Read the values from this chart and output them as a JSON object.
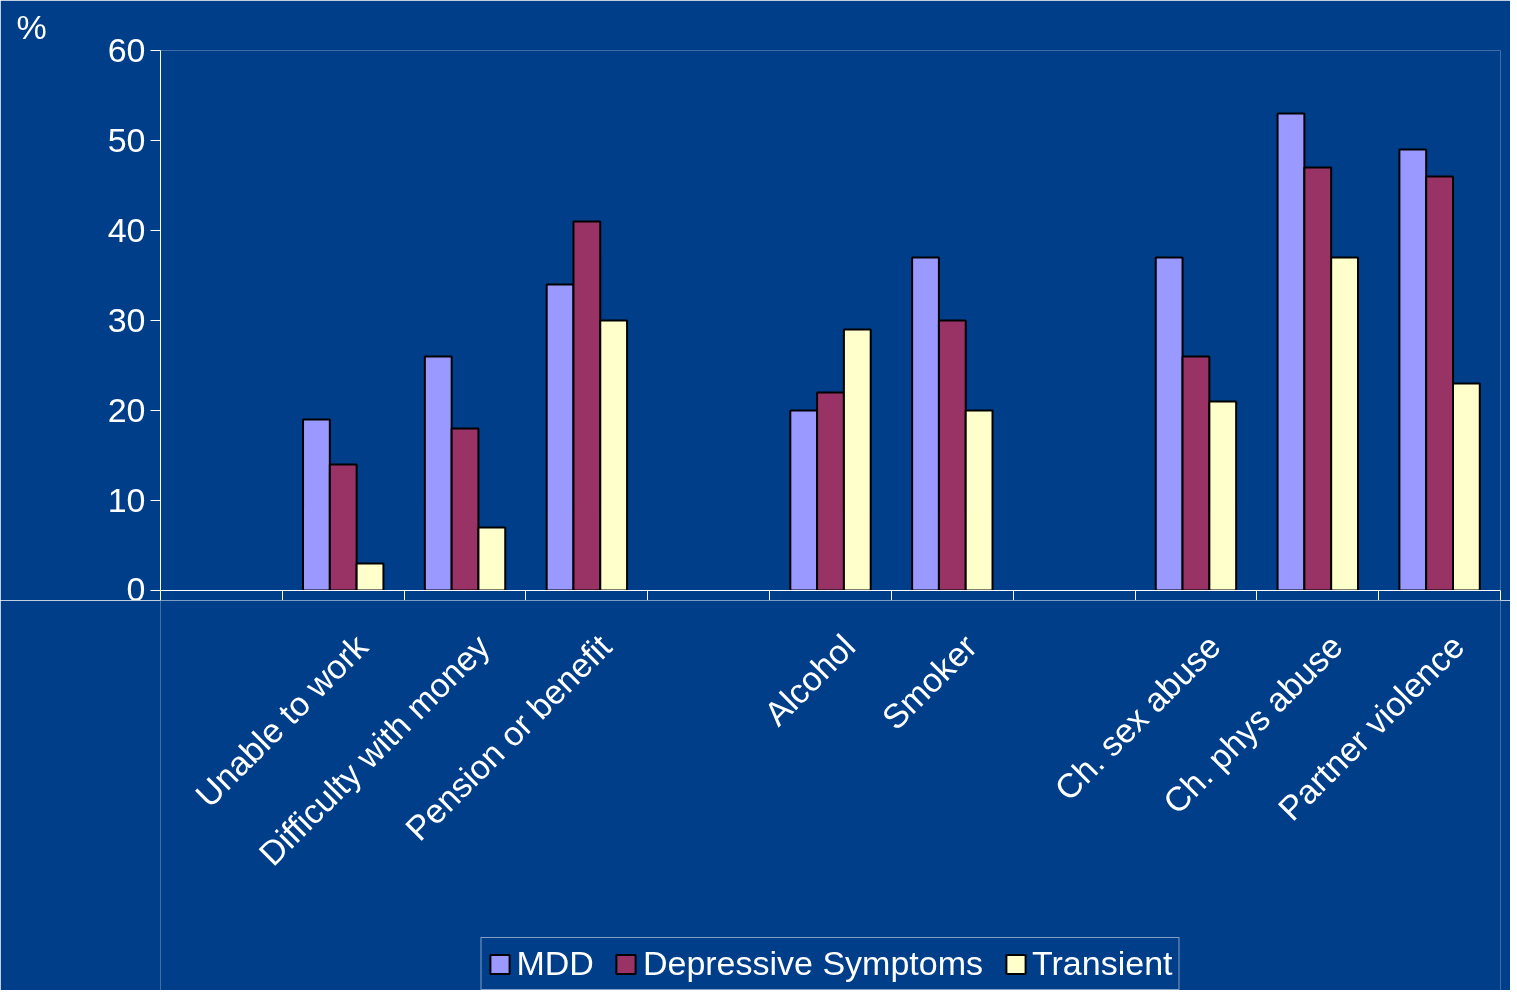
{
  "chart_data": {
    "type": "bar",
    "ylabel": "%",
    "categories": [
      null,
      "Unable to work",
      "Difficulty with money",
      "Pension or benefit",
      null,
      "Alcohol",
      "Smoker",
      null,
      "Ch. sex abuse",
      "Ch. phys abuse",
      "Partner violence"
    ],
    "series": [
      {
        "name": "MDD",
        "color": "#9999ff",
        "values": [
          null,
          19,
          26,
          34,
          null,
          20,
          37,
          null,
          37,
          53,
          49
        ]
      },
      {
        "name": "Depressive Symptoms",
        "color": "#993366",
        "values": [
          null,
          14,
          18,
          41,
          null,
          22,
          30,
          null,
          26,
          47,
          46
        ]
      },
      {
        "name": "Transient",
        "color": "#ffffcc",
        "values": [
          null,
          3,
          7,
          30,
          null,
          29,
          20,
          null,
          21,
          37,
          23
        ]
      }
    ],
    "ylim": [
      0,
      60
    ],
    "yticks": [
      0,
      10,
      20,
      30,
      40,
      50,
      60
    ],
    "grid": false,
    "legend": "bottom"
  }
}
